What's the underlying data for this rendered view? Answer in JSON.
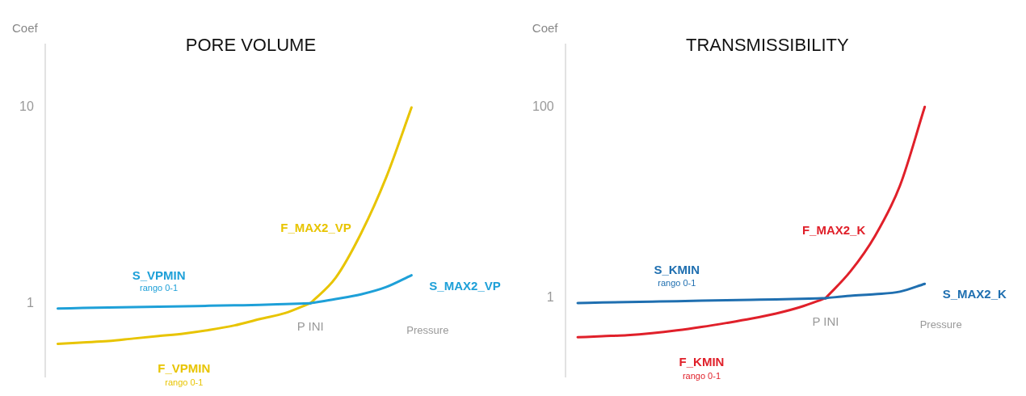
{
  "chart_data": [
    {
      "type": "line",
      "title": "PORE VOLUME",
      "xlabel": "Pressure",
      "ylabel": "Coef",
      "categories": [
        null,
        null,
        null,
        null,
        null,
        null,
        null,
        null,
        null,
        null,
        null,
        null,
        null,
        null,
        null
      ],
      "log": "y",
      "ylim": [
        0.42,
        21
      ],
      "yticks": [
        1,
        10
      ],
      "tick_labels": "y",
      "grid": false,
      "legend": false,
      "marker": "none",
      "line_style": "solid",
      "series": [
        {
          "name": "S_VPMIN",
          "color": "#1ea0d8",
          "values": [
            0.94,
            0.945,
            0.95,
            0.955,
            0.96,
            0.965,
            0.97,
            0.975,
            0.98,
            0.99,
            1,
            null,
            null,
            null,
            null
          ]
        },
        {
          "name": "S_MAX2_VP",
          "color": "#1ea0d8",
          "values": [
            null,
            null,
            null,
            null,
            null,
            null,
            null,
            null,
            null,
            null,
            1,
            1.05,
            1.11,
            1.21,
            1.39
          ]
        },
        {
          "name": "F_VPMIN",
          "color": "#e8c400",
          "values": [
            0.62,
            0.63,
            0.64,
            0.66,
            0.68,
            0.7,
            0.73,
            0.77,
            0.83,
            0.89,
            1,
            null,
            null,
            null,
            null
          ]
        },
        {
          "name": "F_MAX2_VP",
          "color": "#e8c400",
          "values": [
            null,
            null,
            null,
            null,
            null,
            null,
            null,
            null,
            null,
            null,
            1,
            1.35,
            2.27,
            4.4,
            10
          ]
        }
      ],
      "annotations": [
        "rango 0-1",
        "rango 0-1",
        "P INI"
      ]
    },
    {
      "type": "line",
      "title": "TRANSMISSIBILITY",
      "xlabel": "Pressure",
      "ylabel": "Coef",
      "categories": [
        null,
        null,
        null,
        null,
        null,
        null,
        null,
        null,
        null,
        null,
        null,
        null,
        null,
        null,
        null
      ],
      "log": "y",
      "ylim": [
        0.15,
        450
      ],
      "yticks": [
        1,
        100
      ],
      "tick_labels": "y",
      "grid": false,
      "legend": false,
      "marker": "none",
      "line_style": "solid",
      "series": [
        {
          "name": "S_KMIN",
          "color": "#1f6fb0",
          "values": [
            0.89,
            0.9,
            0.91,
            0.92,
            0.93,
            0.94,
            0.95,
            0.96,
            0.97,
            0.985,
            1,
            null,
            null,
            null,
            null
          ]
        },
        {
          "name": "S_MAX2_K",
          "color": "#1f6fb0",
          "values": [
            null,
            null,
            null,
            null,
            null,
            null,
            null,
            null,
            null,
            null,
            1,
            1.06,
            1.1,
            1.17,
            1.41
          ]
        },
        {
          "name": "F_KMIN",
          "color": "#e0202a",
          "values": [
            0.39,
            0.4,
            0.41,
            0.43,
            0.46,
            0.5,
            0.55,
            0.61,
            0.69,
            0.81,
            1,
            null,
            null,
            null,
            null
          ]
        },
        {
          "name": "F_MAX2_K",
          "color": "#e0202a",
          "values": [
            null,
            null,
            null,
            null,
            null,
            null,
            null,
            null,
            null,
            null,
            1,
            1.9,
            4.5,
            15,
            100
          ]
        }
      ],
      "annotations": [
        "rango 0-1",
        "rango 0-1",
        "P INI"
      ]
    }
  ]
}
